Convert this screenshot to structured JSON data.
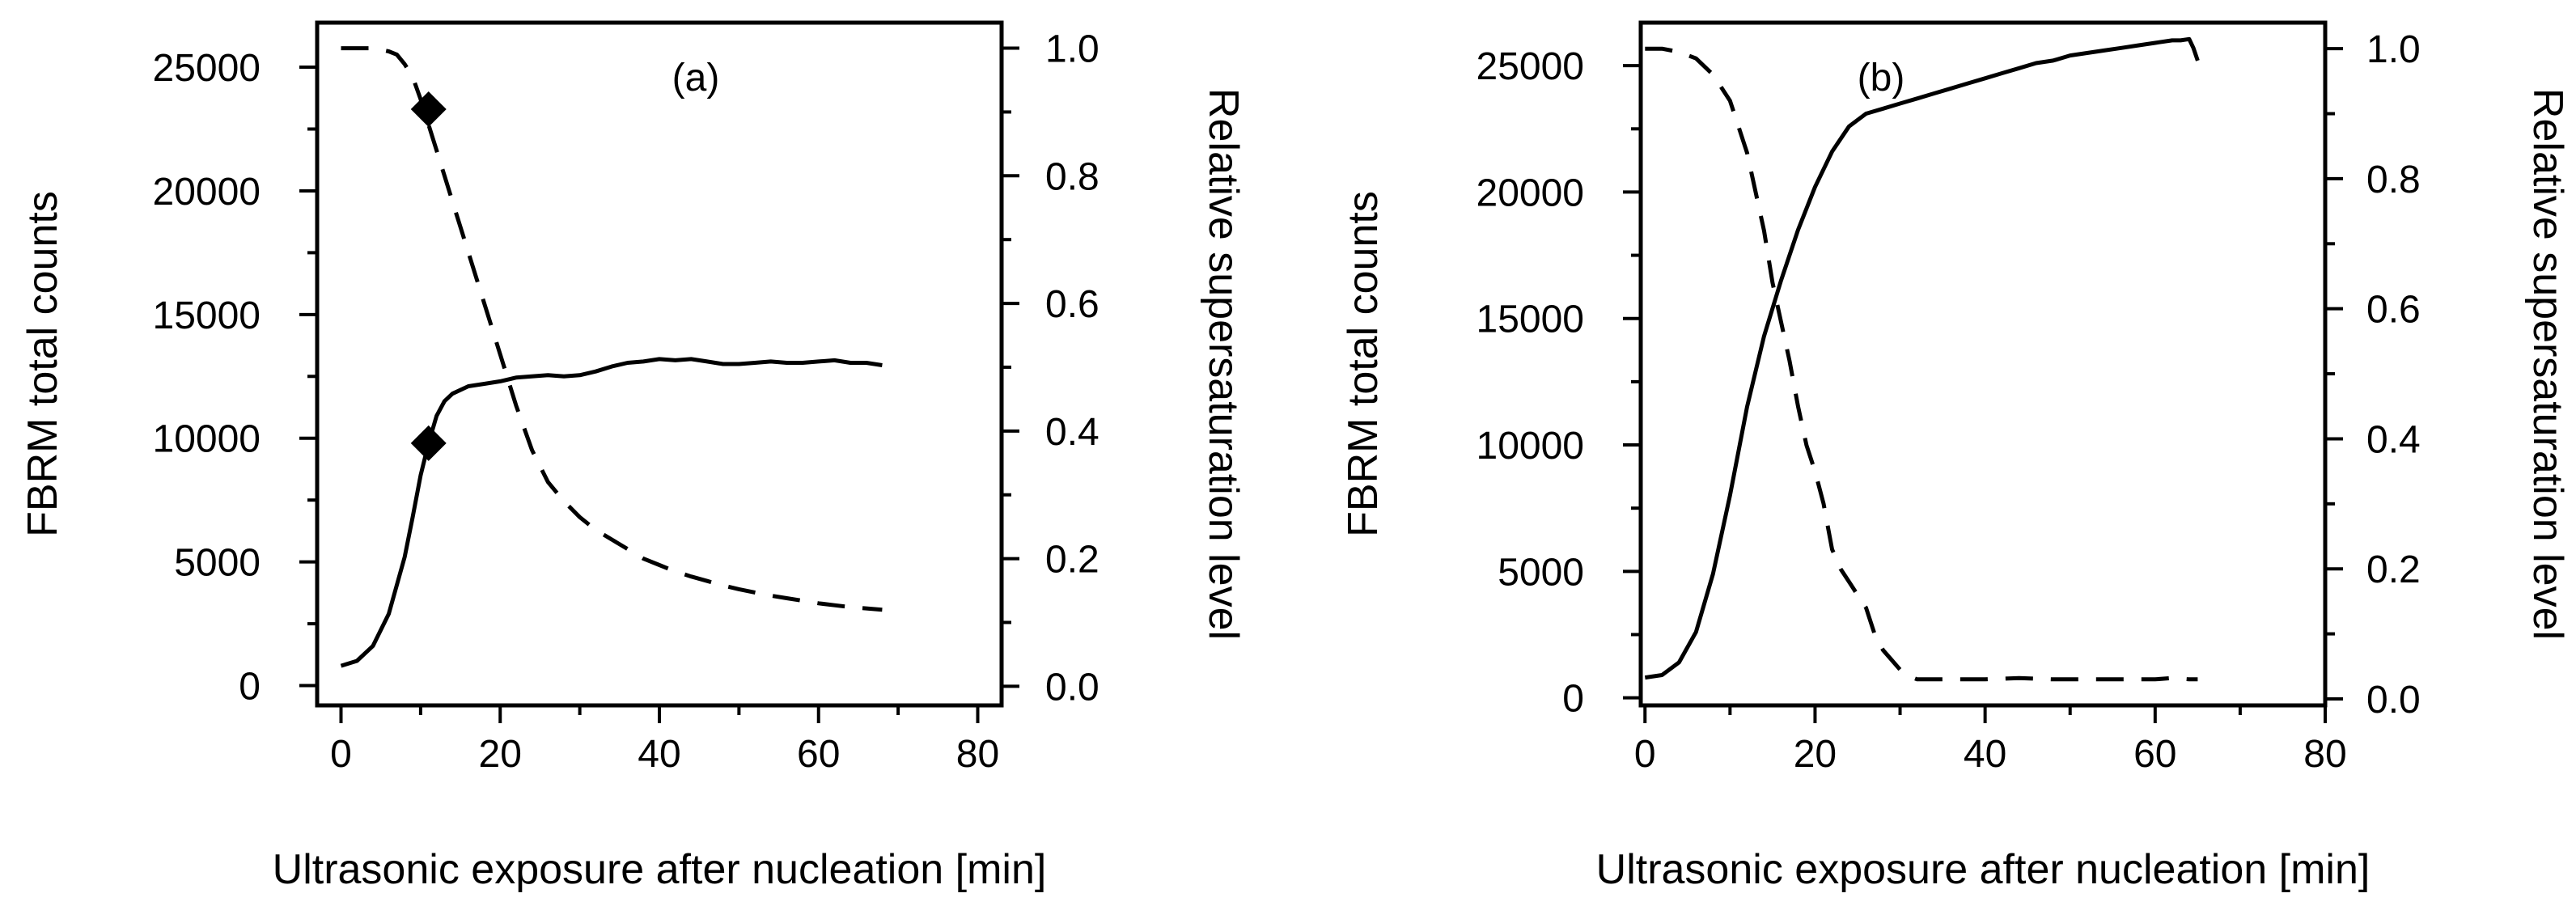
{
  "chart_data": [
    {
      "type": "line",
      "panel_label": "(a)",
      "xlabel": "Ultrasonic exposure after nucleation [min]",
      "ylabel": "FBRM total counts",
      "y2label": "Relative supersaturation level",
      "xlim": [
        -3,
        83
      ],
      "ylim": [
        -800,
        26800
      ],
      "y2lim": [
        -0.03,
        1.04
      ],
      "x_ticks": [
        0,
        20,
        40,
        60,
        80
      ],
      "x_tick_labels": [
        "0",
        "20",
        "40",
        "60",
        "80"
      ],
      "y_ticks": [
        0,
        5000,
        10000,
        15000,
        20000,
        25000
      ],
      "y_tick_labels": [
        "0",
        "5000",
        "10000",
        "15000",
        "20000",
        "25000"
      ],
      "y2_ticks": [
        0.0,
        0.2,
        0.4,
        0.6,
        0.8,
        1.0
      ],
      "y2_tick_labels": [
        "0.0",
        "0.2",
        "0.4",
        "0.6",
        "0.8",
        "1.0"
      ],
      "series": [
        {
          "name": "FBRM total counts",
          "axis": "left",
          "style": "solid",
          "x": [
            0,
            2,
            4,
            6,
            8,
            9,
            10,
            11,
            12,
            13,
            14,
            16,
            18,
            20,
            22,
            24,
            26,
            28,
            30,
            32,
            34,
            36,
            38,
            40,
            42,
            44,
            46,
            48,
            50,
            52,
            54,
            56,
            58,
            60,
            62,
            64,
            66,
            68
          ],
          "y": [
            800,
            1000,
            1600,
            2900,
            5200,
            6800,
            8500,
            9800,
            10900,
            11500,
            11800,
            12100,
            12200,
            12300,
            12450,
            12500,
            12550,
            12500,
            12550,
            12700,
            12900,
            13050,
            13100,
            13200,
            13150,
            13200,
            13100,
            13000,
            13000,
            13050,
            13100,
            13050,
            13050,
            13100,
            13150,
            13050,
            13050,
            12950
          ]
        },
        {
          "name": "Relative supersaturation level",
          "axis": "right",
          "style": "dashed",
          "x": [
            0,
            2,
            4,
            6,
            7,
            8,
            9,
            10,
            11,
            12,
            13,
            14,
            16,
            18,
            20,
            22,
            24,
            26,
            28,
            30,
            32,
            34,
            36,
            38,
            40,
            42,
            44,
            46,
            48,
            50,
            52,
            54,
            56,
            58,
            60,
            62,
            64,
            66,
            68
          ],
          "y": [
            1.0,
            1.0,
            1.0,
            0.995,
            0.99,
            0.975,
            0.955,
            0.92,
            0.88,
            0.84,
            0.8,
            0.76,
            0.68,
            0.6,
            0.52,
            0.44,
            0.37,
            0.32,
            0.29,
            0.265,
            0.245,
            0.23,
            0.215,
            0.2,
            0.19,
            0.18,
            0.172,
            0.165,
            0.158,
            0.152,
            0.147,
            0.142,
            0.138,
            0.134,
            0.13,
            0.127,
            0.124,
            0.122,
            0.12
          ]
        }
      ],
      "markers": [
        {
          "x": 11,
          "y": 23300,
          "axis": "left",
          "shape": "diamond"
        },
        {
          "x": 11,
          "y": 9800,
          "axis": "left",
          "shape": "diamond"
        }
      ]
    },
    {
      "type": "line",
      "panel_label": "(b)",
      "xlabel": "Ultrasonic exposure after nucleation [min]",
      "ylabel": "FBRM total counts",
      "y2label": "Relative supersaturation level",
      "xlim": [
        -0.5,
        80
      ],
      "ylim": [
        -300,
        26700
      ],
      "y2lim": [
        -0.01,
        1.04
      ],
      "x_ticks": [
        0,
        20,
        40,
        60,
        80
      ],
      "x_tick_labels": [
        "0",
        "20",
        "40",
        "60",
        "80"
      ],
      "y_ticks": [
        0,
        5000,
        10000,
        15000,
        20000,
        25000
      ],
      "y_tick_labels": [
        "0",
        "5000",
        "10000",
        "15000",
        "20000",
        "25000"
      ],
      "y2_ticks": [
        0.0,
        0.2,
        0.4,
        0.6,
        0.8,
        1.0
      ],
      "y2_tick_labels": [
        "0.0",
        "0.2",
        "0.4",
        "0.6",
        "0.8",
        "1.0"
      ],
      "series": [
        {
          "name": "FBRM total counts",
          "axis": "left",
          "style": "solid",
          "x": [
            0,
            2,
            4,
            6,
            8,
            10,
            12,
            14,
            16,
            18,
            20,
            22,
            24,
            26,
            28,
            30,
            32,
            34,
            36,
            38,
            40,
            42,
            44,
            46,
            48,
            50,
            52,
            54,
            56,
            58,
            60,
            62,
            63,
            64,
            64.5,
            65
          ],
          "y": [
            800,
            900,
            1400,
            2600,
            4900,
            8000,
            11500,
            14300,
            16500,
            18500,
            20200,
            21600,
            22600,
            23100,
            23300,
            23500,
            23700,
            23900,
            24100,
            24300,
            24500,
            24700,
            24900,
            25100,
            25200,
            25400,
            25500,
            25600,
            25700,
            25800,
            25900,
            26000,
            26000,
            26050,
            25700,
            25200
          ]
        },
        {
          "name": "Relative supersaturation level",
          "axis": "right",
          "style": "dashed",
          "x": [
            0,
            2,
            4,
            6,
            8,
            9,
            10,
            11,
            12,
            13,
            14,
            15,
            16,
            17,
            18,
            19,
            20,
            21,
            22,
            23,
            24,
            25,
            26,
            27,
            28,
            29,
            30,
            31,
            32,
            34,
            36,
            40,
            44,
            48,
            52,
            56,
            60,
            62,
            64,
            65
          ],
          "y": [
            1.0,
            1.0,
            0.995,
            0.985,
            0.96,
            0.94,
            0.92,
            0.88,
            0.84,
            0.78,
            0.72,
            0.64,
            0.58,
            0.52,
            0.45,
            0.39,
            0.35,
            0.3,
            0.23,
            0.2,
            0.18,
            0.16,
            0.14,
            0.1,
            0.075,
            0.06,
            0.045,
            0.035,
            0.03,
            0.03,
            0.03,
            0.03,
            0.032,
            0.03,
            0.03,
            0.03,
            0.03,
            0.032,
            0.03,
            0.03
          ]
        }
      ],
      "markers": []
    }
  ]
}
